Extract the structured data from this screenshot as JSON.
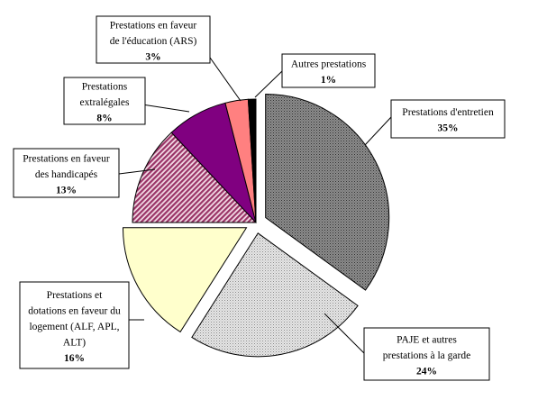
{
  "chart_data": {
    "type": "pie",
    "title": "",
    "unit": "%",
    "slices": [
      {
        "label": "Prestations d'entretien",
        "label_lines": [
          "Prestations d'entretien"
        ],
        "value": 35,
        "value_text": "35%",
        "color": "#7a7a7a",
        "pattern": "dots-dark",
        "exploded": true
      },
      {
        "label": "PAJE et autres prestations à la garde",
        "label_lines": [
          "PAJE et autres",
          "prestations à la garde"
        ],
        "value": 24,
        "value_text": "24%",
        "color": "#d9d9d9",
        "pattern": "dots-light",
        "exploded": true
      },
      {
        "label": "Prestations et dotations en faveur du logement (ALF, APL, ALT)",
        "label_lines": [
          "Prestations et",
          "dotations en faveur du",
          "logement (ALF, APL,",
          "ALT)"
        ],
        "value": 16,
        "value_text": "16%",
        "color": "#ffffcc",
        "pattern": "none",
        "exploded": true
      },
      {
        "label": "Prestations en faveur des handicapés",
        "label_lines": [
          "Prestations en faveur",
          "des handicapés"
        ],
        "value": 13,
        "value_text": "13%",
        "color": "#993366",
        "pattern": "stripes",
        "exploded": false
      },
      {
        "label": "Prestations extralégales",
        "label_lines": [
          "Prestations",
          "extralégales"
        ],
        "value": 8,
        "value_text": "8%",
        "color": "#800080",
        "pattern": "none",
        "exploded": false
      },
      {
        "label": "Prestations en faveur de l'éducation (ARS)",
        "label_lines": [
          "Prestations en faveur",
          "de l'éducation (ARS)"
        ],
        "value": 3,
        "value_text": "3%",
        "color": "#ff8080",
        "pattern": "none",
        "exploded": false
      },
      {
        "label": "Autres prestations",
        "label_lines": [
          "Autres prestations"
        ],
        "value": 1,
        "value_text": "1%",
        "color": "#000000",
        "pattern": "none",
        "exploded": false
      }
    ]
  }
}
